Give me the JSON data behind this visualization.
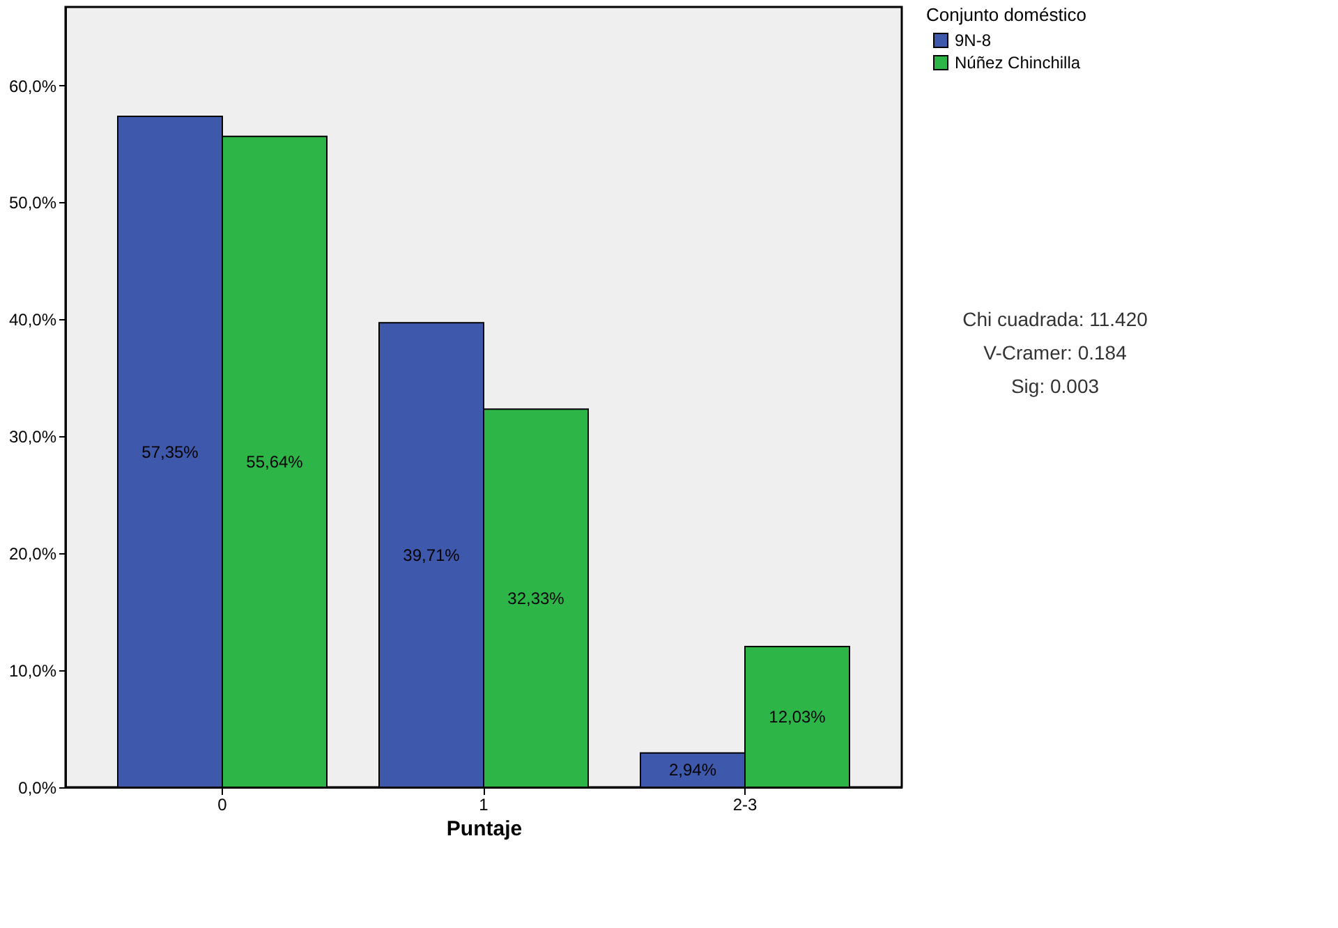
{
  "chart_data": {
    "type": "bar",
    "xlabel": "Puntaje",
    "legend_title": "Conjunto doméstico",
    "categories": [
      "0",
      "1",
      "2-3"
    ],
    "series": [
      {
        "name": "9N-8",
        "color": "#3e58ac",
        "values": [
          57.35,
          39.71,
          2.94
        ],
        "value_labels": [
          "57,35%",
          "39,71%",
          "2,94%"
        ]
      },
      {
        "name": "Núñez Chinchilla",
        "color": "#2eb548",
        "values": [
          55.64,
          32.33,
          12.03
        ],
        "value_labels": [
          "55,64%",
          "32,33%",
          "12,03%"
        ]
      }
    ],
    "ylim": [
      0,
      66.7
    ],
    "yticks": [
      {
        "value": 0,
        "label": "0,0%"
      },
      {
        "value": 10,
        "label": "10,0%"
      },
      {
        "value": 20,
        "label": "20,0%"
      },
      {
        "value": 30,
        "label": "30,0%"
      },
      {
        "value": 40,
        "label": "40,0%"
      },
      {
        "value": 50,
        "label": "50,0%"
      },
      {
        "value": 60,
        "label": "60,0%"
      }
    ],
    "grid": false,
    "legend": "top right",
    "annotations": [
      "Chi cuadrada: 11.420",
      "V-Cramer: 0.184",
      "Sig: 0.003"
    ]
  }
}
